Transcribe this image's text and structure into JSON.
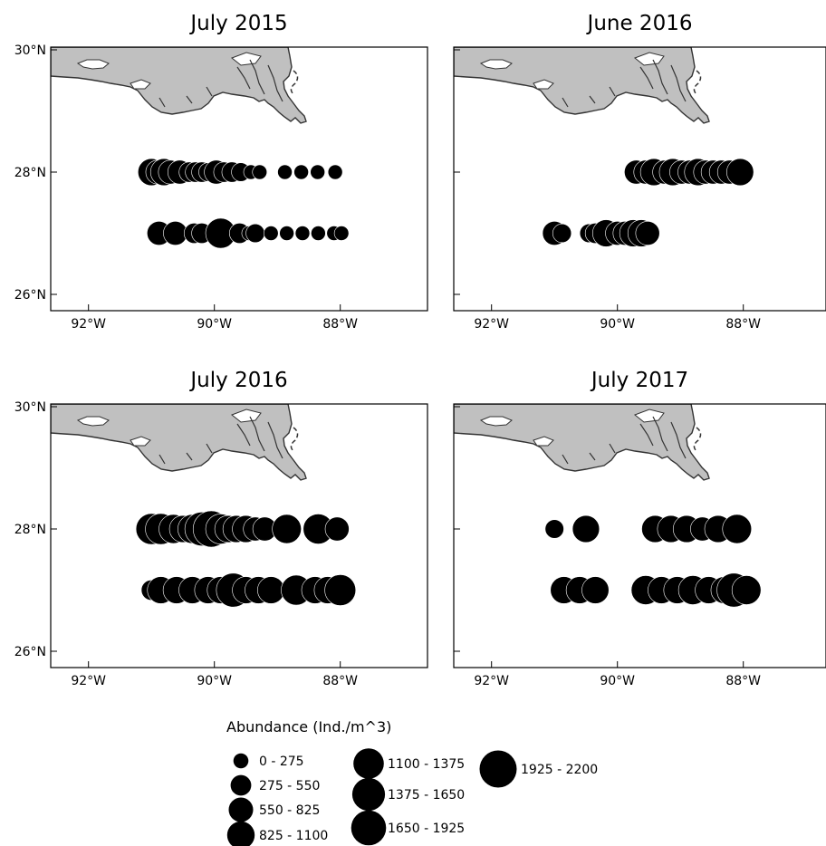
{
  "chart_data": {
    "type": "scatter",
    "x_ticks": [
      {
        "value": -92,
        "label": "92°W"
      },
      {
        "value": -90,
        "label": "90°W"
      },
      {
        "value": -88,
        "label": "88°W"
      }
    ],
    "y_ticks": [
      {
        "value": 26,
        "label": "26°N"
      },
      {
        "value": 28,
        "label": "28°N"
      },
      {
        "value": 30,
        "label": "30°N"
      }
    ],
    "xlim": [
      -92.6,
      -86.5
    ],
    "ylim": [
      25.95,
      30.05
    ],
    "land_color": "#c0c0c0",
    "marker_color": "#000000",
    "panels": [
      {
        "title": "July 2015",
        "points": [
          {
            "lon": -91.0,
            "lat": 28.0,
            "abundance": 900
          },
          {
            "lon": -90.9,
            "lat": 28.0,
            "abundance": 650
          },
          {
            "lon": -90.8,
            "lat": 28.0,
            "abundance": 900
          },
          {
            "lon": -90.7,
            "lat": 28.0,
            "abundance": 650
          },
          {
            "lon": -90.55,
            "lat": 28.0,
            "abundance": 650
          },
          {
            "lon": -90.4,
            "lat": 28.0,
            "abundance": 400
          },
          {
            "lon": -90.3,
            "lat": 28.0,
            "abundance": 400
          },
          {
            "lon": -90.2,
            "lat": 28.0,
            "abundance": 400
          },
          {
            "lon": -90.1,
            "lat": 28.0,
            "abundance": 300
          },
          {
            "lon": -89.97,
            "lat": 28.0,
            "abundance": 650
          },
          {
            "lon": -89.85,
            "lat": 28.0,
            "abundance": 400
          },
          {
            "lon": -89.72,
            "lat": 28.0,
            "abundance": 400
          },
          {
            "lon": -89.58,
            "lat": 28.0,
            "abundance": 300
          },
          {
            "lon": -89.42,
            "lat": 28.0,
            "abundance": 120
          },
          {
            "lon": -89.28,
            "lat": 28.0,
            "abundance": 120
          },
          {
            "lon": -88.88,
            "lat": 28.0,
            "abundance": 120
          },
          {
            "lon": -88.62,
            "lat": 28.0,
            "abundance": 120
          },
          {
            "lon": -88.36,
            "lat": 28.0,
            "abundance": 120
          },
          {
            "lon": -88.08,
            "lat": 28.0,
            "abundance": 120
          },
          {
            "lon": -90.88,
            "lat": 27.0,
            "abundance": 650
          },
          {
            "lon": -90.62,
            "lat": 27.0,
            "abundance": 650
          },
          {
            "lon": -90.32,
            "lat": 27.0,
            "abundance": 400
          },
          {
            "lon": -90.2,
            "lat": 27.0,
            "abundance": 400
          },
          {
            "lon": -89.9,
            "lat": 27.0,
            "abundance": 1200
          },
          {
            "lon": -89.6,
            "lat": 27.0,
            "abundance": 400
          },
          {
            "lon": -89.45,
            "lat": 27.0,
            "abundance": 120
          },
          {
            "lon": -89.35,
            "lat": 27.0,
            "abundance": 300
          },
          {
            "lon": -89.1,
            "lat": 27.0,
            "abundance": 120
          },
          {
            "lon": -88.85,
            "lat": 27.0,
            "abundance": 120
          },
          {
            "lon": -88.6,
            "lat": 27.0,
            "abundance": 120
          },
          {
            "lon": -88.35,
            "lat": 27.0,
            "abundance": 120
          },
          {
            "lon": -88.1,
            "lat": 27.0,
            "abundance": 120
          },
          {
            "lon": -87.98,
            "lat": 27.0,
            "abundance": 120
          }
        ]
      },
      {
        "title": "June 2016",
        "points": [
          {
            "lon": -89.7,
            "lat": 28.0,
            "abundance": 650
          },
          {
            "lon": -89.55,
            "lat": 28.0,
            "abundance": 650
          },
          {
            "lon": -89.42,
            "lat": 28.0,
            "abundance": 900
          },
          {
            "lon": -89.25,
            "lat": 28.0,
            "abundance": 650
          },
          {
            "lon": -89.12,
            "lat": 28.0,
            "abundance": 900
          },
          {
            "lon": -88.98,
            "lat": 28.0,
            "abundance": 650
          },
          {
            "lon": -88.85,
            "lat": 28.0,
            "abundance": 650
          },
          {
            "lon": -88.72,
            "lat": 28.0,
            "abundance": 900
          },
          {
            "lon": -88.6,
            "lat": 28.0,
            "abundance": 650
          },
          {
            "lon": -88.48,
            "lat": 28.0,
            "abundance": 650
          },
          {
            "lon": -88.35,
            "lat": 28.0,
            "abundance": 650
          },
          {
            "lon": -88.22,
            "lat": 28.0,
            "abundance": 650
          },
          {
            "lon": -88.05,
            "lat": 28.0,
            "abundance": 900
          },
          {
            "lon": -91.0,
            "lat": 27.0,
            "abundance": 650
          },
          {
            "lon": -90.88,
            "lat": 27.0,
            "abundance": 300
          },
          {
            "lon": -90.45,
            "lat": 27.0,
            "abundance": 300
          },
          {
            "lon": -90.35,
            "lat": 27.0,
            "abundance": 400
          },
          {
            "lon": -90.18,
            "lat": 27.0,
            "abundance": 900
          },
          {
            "lon": -90.0,
            "lat": 27.0,
            "abundance": 650
          },
          {
            "lon": -89.88,
            "lat": 27.0,
            "abundance": 650
          },
          {
            "lon": -89.75,
            "lat": 27.0,
            "abundance": 900
          },
          {
            "lon": -89.62,
            "lat": 27.0,
            "abundance": 900
          },
          {
            "lon": -89.52,
            "lat": 27.0,
            "abundance": 650
          }
        ]
      },
      {
        "title": "July 2016",
        "points": [
          {
            "lon": -91.0,
            "lat": 28.0,
            "abundance": 1300
          },
          {
            "lon": -90.85,
            "lat": 28.0,
            "abundance": 1300
          },
          {
            "lon": -90.65,
            "lat": 28.0,
            "abundance": 1100
          },
          {
            "lon": -90.5,
            "lat": 28.0,
            "abundance": 900
          },
          {
            "lon": -90.35,
            "lat": 28.0,
            "abundance": 1100
          },
          {
            "lon": -90.2,
            "lat": 28.0,
            "abundance": 1650
          },
          {
            "lon": -90.05,
            "lat": 28.0,
            "abundance": 1950
          },
          {
            "lon": -89.9,
            "lat": 28.0,
            "abundance": 1200
          },
          {
            "lon": -89.78,
            "lat": 28.0,
            "abundance": 900
          },
          {
            "lon": -89.65,
            "lat": 28.0,
            "abundance": 900
          },
          {
            "lon": -89.5,
            "lat": 28.0,
            "abundance": 900
          },
          {
            "lon": -89.35,
            "lat": 28.0,
            "abundance": 650
          },
          {
            "lon": -89.2,
            "lat": 28.0,
            "abundance": 650
          },
          {
            "lon": -88.85,
            "lat": 28.0,
            "abundance": 1100
          },
          {
            "lon": -88.35,
            "lat": 28.0,
            "abundance": 1200
          },
          {
            "lon": -88.05,
            "lat": 28.0,
            "abundance": 650
          },
          {
            "lon": -91.0,
            "lat": 27.0,
            "abundance": 400
          },
          {
            "lon": -90.85,
            "lat": 27.0,
            "abundance": 900
          },
          {
            "lon": -90.6,
            "lat": 27.0,
            "abundance": 900
          },
          {
            "lon": -90.35,
            "lat": 27.0,
            "abundance": 900
          },
          {
            "lon": -90.1,
            "lat": 27.0,
            "abundance": 900
          },
          {
            "lon": -89.9,
            "lat": 27.0,
            "abundance": 900
          },
          {
            "lon": -89.7,
            "lat": 27.0,
            "abundance": 1650
          },
          {
            "lon": -89.5,
            "lat": 27.0,
            "abundance": 900
          },
          {
            "lon": -89.3,
            "lat": 27.0,
            "abundance": 900
          },
          {
            "lon": -89.1,
            "lat": 27.0,
            "abundance": 900
          },
          {
            "lon": -88.7,
            "lat": 27.0,
            "abundance": 1200
          },
          {
            "lon": -88.4,
            "lat": 27.0,
            "abundance": 900
          },
          {
            "lon": -88.2,
            "lat": 27.0,
            "abundance": 900
          },
          {
            "lon": -88.0,
            "lat": 27.0,
            "abundance": 1300
          }
        ]
      },
      {
        "title": "July 2017",
        "points": [
          {
            "lon": -91.0,
            "lat": 28.0,
            "abundance": 300
          },
          {
            "lon": -90.5,
            "lat": 28.0,
            "abundance": 900
          },
          {
            "lon": -89.4,
            "lat": 28.0,
            "abundance": 900
          },
          {
            "lon": -89.15,
            "lat": 28.0,
            "abundance": 900
          },
          {
            "lon": -88.9,
            "lat": 28.0,
            "abundance": 900
          },
          {
            "lon": -88.65,
            "lat": 28.0,
            "abundance": 650
          },
          {
            "lon": -88.4,
            "lat": 28.0,
            "abundance": 900
          },
          {
            "lon": -88.1,
            "lat": 28.0,
            "abundance": 1100
          },
          {
            "lon": -90.85,
            "lat": 27.0,
            "abundance": 900
          },
          {
            "lon": -90.6,
            "lat": 27.0,
            "abundance": 900
          },
          {
            "lon": -90.35,
            "lat": 27.0,
            "abundance": 900
          },
          {
            "lon": -89.55,
            "lat": 27.0,
            "abundance": 1100
          },
          {
            "lon": -89.3,
            "lat": 27.0,
            "abundance": 900
          },
          {
            "lon": -89.05,
            "lat": 27.0,
            "abundance": 900
          },
          {
            "lon": -88.8,
            "lat": 27.0,
            "abundance": 1100
          },
          {
            "lon": -88.55,
            "lat": 27.0,
            "abundance": 900
          },
          {
            "lon": -88.3,
            "lat": 27.0,
            "abundance": 900
          },
          {
            "lon": -88.15,
            "lat": 27.0,
            "abundance": 1650
          },
          {
            "lon": -87.95,
            "lat": 27.0,
            "abundance": 1100
          }
        ]
      }
    ],
    "legend": {
      "title": "Abundance (Ind./m^3)",
      "bins": [
        {
          "label": "0 - 275",
          "mid": 137.5
        },
        {
          "label": "275 - 550",
          "mid": 412.5
        },
        {
          "label": "550 - 825",
          "mid": 687.5
        },
        {
          "label": "825 - 1100",
          "mid": 962.5
        },
        {
          "label": "1100 - 1375",
          "mid": 1237.5
        },
        {
          "label": "1375 - 1650",
          "mid": 1512.5
        },
        {
          "label": "1650 - 1925",
          "mid": 1787.5
        },
        {
          "label": "1925 - 2200",
          "mid": 2062.5
        }
      ]
    }
  }
}
